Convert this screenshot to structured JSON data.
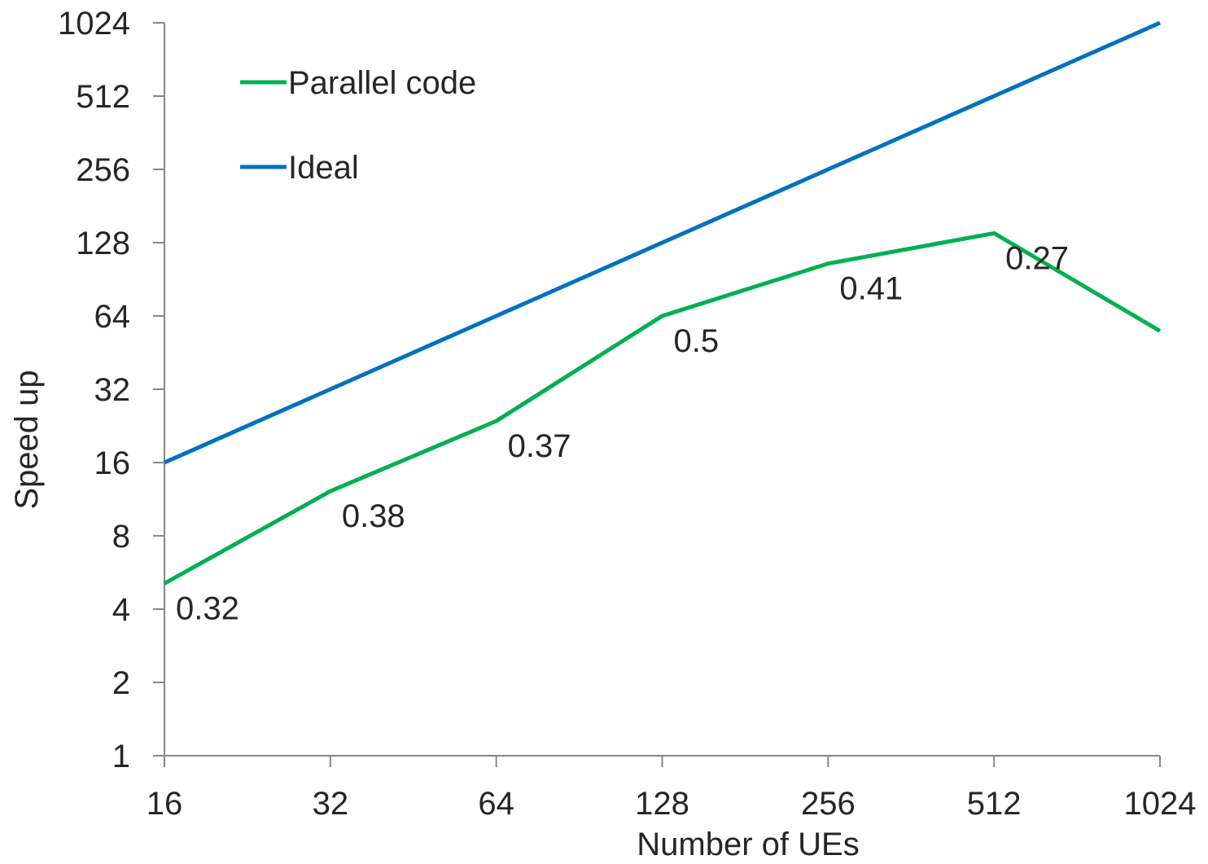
{
  "chart_data": {
    "type": "line",
    "xlabel": "Number of UEs",
    "ylabel": "Speed up",
    "x_scale": "log2",
    "y_scale": "log2",
    "x": [
      16,
      32,
      64,
      128,
      256,
      512,
      1024
    ],
    "x_tick_labels": [
      "16",
      "32",
      "64",
      "128",
      "256",
      "512",
      "1024"
    ],
    "y_tick_values": [
      1,
      2,
      4,
      8,
      16,
      32,
      64,
      128,
      256,
      512,
      1024
    ],
    "y_tick_labels": [
      "1",
      "2",
      "4",
      "8",
      "16",
      "32",
      "64",
      "128",
      "256",
      "512",
      "1024"
    ],
    "xlim": [
      16,
      1024
    ],
    "ylim": [
      1,
      1024
    ],
    "grid": false,
    "legend_position": "top-left",
    "series": [
      {
        "name": "Parallel code",
        "color": "#00b050",
        "values": [
          5.1,
          12.2,
          23.7,
          64,
          105,
          140,
          55.5
        ],
        "data_labels": [
          "0.32",
          "0.38",
          "0.37",
          "0.5",
          "0.41",
          "0.27",
          ""
        ]
      },
      {
        "name": "Ideal",
        "color": "#0070c0",
        "values": [
          16,
          32,
          64,
          128,
          256,
          512,
          1024
        ],
        "data_labels": []
      }
    ]
  }
}
